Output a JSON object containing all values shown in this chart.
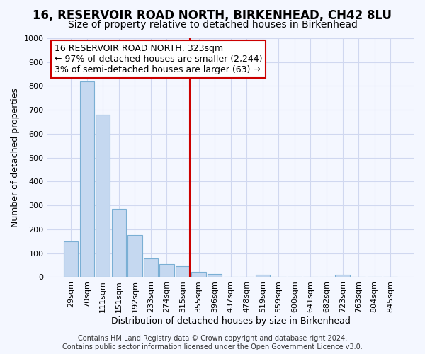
{
  "title1": "16, RESERVOIR ROAD NORTH, BIRKENHEAD, CH42 8LU",
  "title2": "Size of property relative to detached houses in Birkenhead",
  "xlabel": "Distribution of detached houses by size in Birkenhead",
  "ylabel": "Number of detached properties",
  "categories": [
    "29sqm",
    "70sqm",
    "111sqm",
    "151sqm",
    "192sqm",
    "233sqm",
    "274sqm",
    "315sqm",
    "355sqm",
    "396sqm",
    "437sqm",
    "478sqm",
    "519sqm",
    "559sqm",
    "600sqm",
    "641sqm",
    "682sqm",
    "723sqm",
    "763sqm",
    "804sqm",
    "845sqm"
  ],
  "values": [
    150,
    820,
    680,
    285,
    175,
    78,
    55,
    45,
    22,
    13,
    0,
    0,
    10,
    0,
    0,
    0,
    0,
    10,
    0,
    0,
    0
  ],
  "bar_color": "#c5d8f0",
  "bar_edge_color": "#7aafd4",
  "vline_x_index": 7,
  "vline_color": "#cc0000",
  "annotation_text": "16 RESERVOIR ROAD NORTH: 323sqm\n← 97% of detached houses are smaller (2,244)\n3% of semi-detached houses are larger (63) →",
  "annotation_box_facecolor": "#ffffff",
  "annotation_box_edgecolor": "#cc0000",
  "footer": "Contains HM Land Registry data © Crown copyright and database right 2024.\nContains public sector information licensed under the Open Government Licence v3.0.",
  "ylim": [
    0,
    1000
  ],
  "yticks": [
    0,
    100,
    200,
    300,
    400,
    500,
    600,
    700,
    800,
    900,
    1000
  ],
  "background_color": "#f4f7ff",
  "grid_color": "#d0d8f0",
  "title_fontsize": 12,
  "subtitle_fontsize": 10,
  "axis_label_fontsize": 9,
  "tick_fontsize": 8,
  "annotation_fontsize": 9,
  "footer_fontsize": 7
}
